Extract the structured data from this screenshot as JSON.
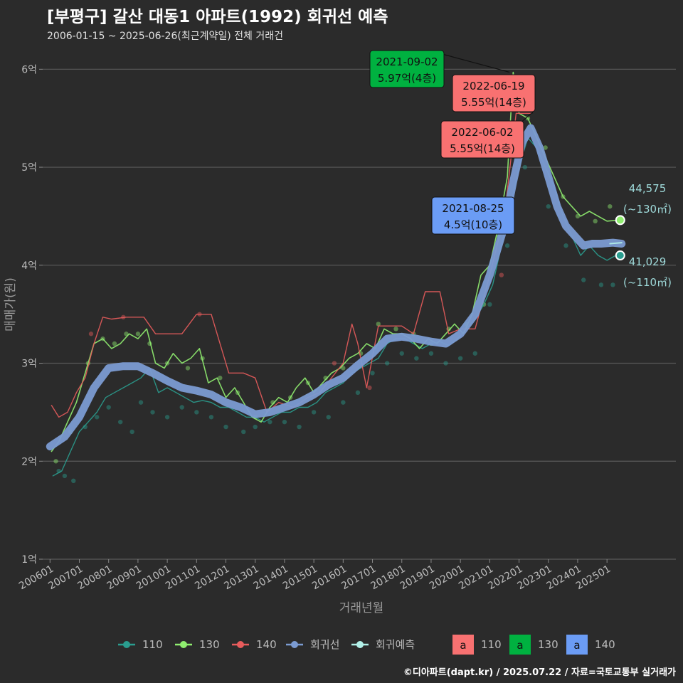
{
  "header": {
    "title": "[부평구] 갈산 대동1 아파트(1992) 회귀선 예측",
    "subtitle": "2006-01-15 ~ 2025-06-26(최근계약일) 전체 거래건"
  },
  "footer": "©디아파트(dapt.kr) / 2025.07.22 / 자료=국토교통부 실거래가",
  "colors": {
    "background": "#2b2b2b",
    "grid": "#5a5a5a",
    "s110": "#2a9d8f",
    "s130": "#90ee70",
    "s140": "#e85c5c",
    "regression": "#7b9bd2",
    "forecast": "#b2f0e8",
    "box110": "#f87171",
    "box130": "#00b140",
    "box140": "#6b9cf5"
  },
  "chart_data": {
    "type": "line",
    "title": "[부평구] 갈산 대동1 아파트(1992) 회귀선 예측",
    "xlabel": "거래년월",
    "ylabel": "매매가(원)",
    "xlim": [
      2005.75,
      2027.35
    ],
    "ylim": [
      1,
      6.3
    ],
    "x_ticks": [
      {
        "x": 2006,
        "label": "200601"
      },
      {
        "x": 2007,
        "label": "200701"
      },
      {
        "x": 2008,
        "label": "200801"
      },
      {
        "x": 2009,
        "label": "200901"
      },
      {
        "x": 2010,
        "label": "201001"
      },
      {
        "x": 2011,
        "label": "201101"
      },
      {
        "x": 2012,
        "label": "201201"
      },
      {
        "x": 2013,
        "label": "201301"
      },
      {
        "x": 2014,
        "label": "201401"
      },
      {
        "x": 2015,
        "label": "201501"
      },
      {
        "x": 2016,
        "label": "201601"
      },
      {
        "x": 2017,
        "label": "201701"
      },
      {
        "x": 2018,
        "label": "201801"
      },
      {
        "x": 2019,
        "label": "201901"
      },
      {
        "x": 2020,
        "label": "202001"
      },
      {
        "x": 2021,
        "label": "202101"
      },
      {
        "x": 2022,
        "label": "202201"
      },
      {
        "x": 2023,
        "label": "202301"
      },
      {
        "x": 2024,
        "label": "202401"
      },
      {
        "x": 2025,
        "label": "202501"
      }
    ],
    "y_ticks": [
      {
        "y": 1,
        "label": "1억"
      },
      {
        "y": 2,
        "label": "2억"
      },
      {
        "y": 3,
        "label": "3억"
      },
      {
        "y": 4,
        "label": "4억"
      },
      {
        "y": 5,
        "label": "5억"
      },
      {
        "y": 6,
        "label": "6억"
      }
    ],
    "series": [
      {
        "name": "110",
        "key": "s110",
        "width": 1.4,
        "x": [
          2006.1,
          2006.4,
          2006.7,
          2007.0,
          2007.3,
          2007.6,
          2007.9,
          2008.2,
          2008.5,
          2008.8,
          2009.1,
          2009.4,
          2009.7,
          2010.0,
          2010.3,
          2010.6,
          2010.9,
          2011.2,
          2011.5,
          2011.8,
          2012.1,
          2012.4,
          2012.7,
          2013.0,
          2013.3,
          2013.6,
          2013.9,
          2014.2,
          2014.5,
          2014.8,
          2015.1,
          2015.4,
          2015.7,
          2016.0,
          2016.3,
          2016.6,
          2016.9,
          2017.2,
          2017.5,
          2017.8,
          2018.1,
          2018.4,
          2018.7,
          2019.0,
          2019.3,
          2019.6,
          2019.9,
          2020.2,
          2020.5,
          2020.8,
          2021.1,
          2021.4,
          2021.7,
          2022.0,
          2022.3,
          2022.6,
          2022.9,
          2023.2,
          2023.5,
          2023.8,
          2024.1,
          2024.4,
          2024.7,
          2025.0,
          2025.3
        ],
        "y": [
          1.85,
          1.9,
          2.1,
          2.3,
          2.4,
          2.5,
          2.65,
          2.7,
          2.75,
          2.8,
          2.85,
          2.95,
          2.7,
          2.75,
          2.7,
          2.65,
          2.6,
          2.62,
          2.6,
          2.55,
          2.55,
          2.5,
          2.45,
          2.45,
          2.4,
          2.45,
          2.5,
          2.5,
          2.55,
          2.55,
          2.6,
          2.7,
          2.75,
          2.8,
          2.9,
          2.95,
          3.0,
          3.05,
          3.2,
          3.25,
          3.25,
          3.2,
          3.15,
          3.2,
          3.22,
          3.18,
          3.25,
          3.35,
          3.45,
          3.6,
          3.8,
          4.2,
          4.6,
          5.0,
          5.3,
          5.2,
          5.0,
          4.8,
          4.5,
          4.3,
          4.1,
          4.2,
          4.1,
          4.05,
          4.1
        ]
      },
      {
        "name": "130",
        "key": "s130",
        "width": 1.6,
        "x": [
          2006.05,
          2006.3,
          2006.6,
          2006.9,
          2007.2,
          2007.5,
          2007.8,
          2008.1,
          2008.4,
          2008.7,
          2009.0,
          2009.3,
          2009.6,
          2009.9,
          2010.2,
          2010.5,
          2010.8,
          2011.1,
          2011.4,
          2011.7,
          2012.0,
          2012.3,
          2012.6,
          2012.9,
          2013.2,
          2013.5,
          2013.8,
          2014.1,
          2014.4,
          2014.7,
          2015.0,
          2015.3,
          2015.6,
          2015.9,
          2016.2,
          2016.5,
          2016.8,
          2017.1,
          2017.4,
          2017.7,
          2018.0,
          2018.3,
          2018.6,
          2018.9,
          2019.2,
          2019.5,
          2019.8,
          2020.1,
          2020.4,
          2020.7,
          2021.0,
          2021.3,
          2021.6,
          2021.8,
          2022.0,
          2022.3,
          2022.6,
          2022.9,
          2023.2,
          2023.5,
          2023.8,
          2024.1,
          2024.4,
          2024.7,
          2025.0,
          2025.4
        ],
        "y": [
          2.1,
          2.2,
          2.4,
          2.6,
          2.9,
          3.2,
          3.25,
          3.15,
          3.2,
          3.3,
          3.25,
          3.35,
          3.0,
          2.95,
          3.1,
          3.0,
          3.05,
          3.15,
          2.8,
          2.85,
          2.65,
          2.75,
          2.6,
          2.45,
          2.4,
          2.55,
          2.65,
          2.6,
          2.75,
          2.85,
          2.7,
          2.8,
          2.9,
          2.95,
          3.05,
          3.1,
          3.2,
          3.15,
          3.35,
          3.3,
          3.3,
          3.25,
          3.15,
          3.25,
          3.2,
          3.3,
          3.4,
          3.3,
          3.5,
          3.9,
          4.0,
          4.4,
          4.9,
          5.97,
          5.55,
          5.5,
          5.3,
          5.1,
          4.9,
          4.7,
          4.6,
          4.5,
          4.55,
          4.5,
          4.45,
          4.46
        ]
      },
      {
        "name": "140",
        "key": "s140",
        "width": 1.4,
        "x": [
          2006.05,
          2006.3,
          2006.6,
          2006.9,
          2007.2,
          2007.5,
          2007.8,
          2008.1,
          2008.6,
          2009.2,
          2009.6,
          2010.1,
          2010.5,
          2011.0,
          2011.5,
          2012.1,
          2012.6,
          2013.0,
          2013.4,
          2013.8,
          2014.3,
          2014.8,
          2015.2,
          2015.6,
          2016.0,
          2016.3,
          2016.5,
          2016.8,
          2017.2,
          2017.6,
          2018.0,
          2018.4,
          2018.8,
          2019.3,
          2019.6,
          2020.0,
          2020.5,
          2021.0,
          2021.5,
          2021.9,
          2022.4
        ],
        "y": [
          2.57,
          2.45,
          2.5,
          2.7,
          2.85,
          3.2,
          3.47,
          3.45,
          3.47,
          3.47,
          3.3,
          3.3,
          3.3,
          3.5,
          3.5,
          2.9,
          2.9,
          2.85,
          2.5,
          2.6,
          2.55,
          2.65,
          2.7,
          2.85,
          3.0,
          3.4,
          3.2,
          2.75,
          3.38,
          3.38,
          3.38,
          3.3,
          3.73,
          3.73,
          3.3,
          3.35,
          3.35,
          3.9,
          4.5,
          5.55,
          5.55
        ]
      },
      {
        "name": "회귀선",
        "key": "regression",
        "width": 11,
        "x": [
          2006.0,
          2006.5,
          2007.0,
          2007.5,
          2008.0,
          2008.5,
          2009.0,
          2009.5,
          2010.0,
          2010.5,
          2011.0,
          2011.5,
          2012.0,
          2012.5,
          2013.0,
          2013.5,
          2014.0,
          2014.5,
          2015.0,
          2015.5,
          2016.0,
          2016.5,
          2017.0,
          2017.5,
          2018.0,
          2018.5,
          2019.0,
          2019.5,
          2020.0,
          2020.5,
          2021.0,
          2021.5,
          2021.8,
          2022.1,
          2022.4,
          2022.7,
          2023.0,
          2023.3,
          2023.6,
          2023.9,
          2024.2,
          2024.5,
          2024.8,
          2025.2,
          2025.5
        ],
        "y": [
          2.15,
          2.25,
          2.45,
          2.75,
          2.95,
          2.97,
          2.97,
          2.9,
          2.82,
          2.75,
          2.72,
          2.68,
          2.6,
          2.55,
          2.48,
          2.5,
          2.55,
          2.6,
          2.68,
          2.78,
          2.85,
          2.98,
          3.1,
          3.25,
          3.27,
          3.25,
          3.22,
          3.2,
          3.3,
          3.5,
          3.9,
          4.4,
          4.85,
          5.25,
          5.4,
          5.2,
          4.9,
          4.6,
          4.4,
          4.3,
          4.2,
          4.22,
          4.22,
          4.23,
          4.22
        ]
      },
      {
        "name": "회귀예측",
        "key": "forecast",
        "width": 2,
        "x": [
          2025.1,
          2025.5
        ],
        "y": [
          4.22,
          4.23
        ]
      }
    ],
    "scatter_points": {
      "s110": [
        [
          2006.3,
          1.9
        ],
        [
          2006.5,
          1.85
        ],
        [
          2006.8,
          1.8
        ],
        [
          2007.2,
          2.35
        ],
        [
          2007.6,
          2.45
        ],
        [
          2008.0,
          2.55
        ],
        [
          2008.4,
          2.4
        ],
        [
          2008.8,
          2.3
        ],
        [
          2009.1,
          2.6
        ],
        [
          2009.5,
          2.5
        ],
        [
          2010.0,
          2.45
        ],
        [
          2010.5,
          2.55
        ],
        [
          2011.0,
          2.5
        ],
        [
          2011.5,
          2.45
        ],
        [
          2012.0,
          2.35
        ],
        [
          2012.6,
          2.3
        ],
        [
          2013.0,
          2.35
        ],
        [
          2013.5,
          2.4
        ],
        [
          2014.0,
          2.4
        ],
        [
          2014.5,
          2.35
        ],
        [
          2015.0,
          2.5
        ],
        [
          2015.5,
          2.45
        ],
        [
          2016.0,
          2.6
        ],
        [
          2016.5,
          2.7
        ],
        [
          2017.0,
          2.9
        ],
        [
          2017.5,
          3.0
        ],
        [
          2018.0,
          3.1
        ],
        [
          2018.5,
          3.05
        ],
        [
          2019.0,
          3.1
        ],
        [
          2019.5,
          3.0
        ],
        [
          2020.0,
          3.05
        ],
        [
          2020.5,
          3.1
        ],
        [
          2021.0,
          3.6
        ],
        [
          2021.6,
          4.2
        ],
        [
          2022.2,
          5.0
        ],
        [
          2023.0,
          4.6
        ],
        [
          2023.6,
          4.2
        ],
        [
          2024.2,
          3.85
        ],
        [
          2024.8,
          3.8
        ],
        [
          2025.2,
          3.8
        ]
      ],
      "s130": [
        [
          2006.2,
          2.0
        ],
        [
          2006.7,
          2.3
        ],
        [
          2007.3,
          3.0
        ],
        [
          2007.8,
          3.25
        ],
        [
          2008.2,
          3.2
        ],
        [
          2008.6,
          3.3
        ],
        [
          2009.0,
          3.3
        ],
        [
          2009.4,
          3.2
        ],
        [
          2010.0,
          3.0
        ],
        [
          2010.7,
          2.95
        ],
        [
          2011.2,
          3.05
        ],
        [
          2011.8,
          2.85
        ],
        [
          2012.4,
          2.7
        ],
        [
          2013.0,
          2.45
        ],
        [
          2013.6,
          2.6
        ],
        [
          2014.2,
          2.65
        ],
        [
          2014.8,
          2.8
        ],
        [
          2015.4,
          2.85
        ],
        [
          2016.0,
          2.95
        ],
        [
          2016.6,
          3.1
        ],
        [
          2017.2,
          3.4
        ],
        [
          2017.8,
          3.35
        ],
        [
          2018.4,
          3.3
        ],
        [
          2019.0,
          3.2
        ],
        [
          2019.6,
          3.35
        ],
        [
          2020.2,
          3.4
        ],
        [
          2020.8,
          3.6
        ],
        [
          2021.3,
          4.3
        ],
        [
          2021.8,
          5.6
        ],
        [
          2022.3,
          5.5
        ],
        [
          2022.9,
          5.2
        ],
        [
          2023.5,
          4.7
        ],
        [
          2024.0,
          4.5
        ],
        [
          2024.6,
          4.45
        ],
        [
          2025.1,
          4.6
        ]
      ],
      "s140": [
        [
          2007.4,
          3.3
        ],
        [
          2008.5,
          3.47
        ],
        [
          2011.1,
          3.5
        ],
        [
          2015.7,
          3.0
        ],
        [
          2016.9,
          2.75
        ],
        [
          2021.4,
          3.9
        ]
      ]
    },
    "annotations": [
      {
        "date": "2021-09-02",
        "value": "5.97억(4층)",
        "color_key": "box130",
        "x": 2021.67,
        "y": 5.97
      },
      {
        "date": "2022-06-19",
        "value": "5.55억(14층)",
        "color_key": "box110",
        "x": 2022.46,
        "y": 5.55
      },
      {
        "date": "2022-06-02",
        "value": "5.55억(14층)",
        "color_key": "box110",
        "x": 2022.42,
        "y": 5.55
      },
      {
        "date": "2021-08-25",
        "value": "4.5억(10층)",
        "color_key": "box140",
        "x": 2021.65,
        "y": 4.5
      }
    ],
    "end_labels": [
      {
        "price": "44,575",
        "area": "(~130㎡)",
        "color_key": "s130",
        "x": 2025.5,
        "y": 4.46
      },
      {
        "price": "41,029",
        "area": "(~110㎡)",
        "color_key": "s110",
        "x": 2025.5,
        "y": 4.1
      }
    ]
  },
  "legend": {
    "lines": [
      {
        "label": "110",
        "color_key": "s110"
      },
      {
        "label": "130",
        "color_key": "s130"
      },
      {
        "label": "140",
        "color_key": "s140"
      },
      {
        "label": "회귀선",
        "color_key": "regression"
      },
      {
        "label": "회귀예측",
        "color_key": "forecast"
      }
    ],
    "boxes": [
      {
        "glyph": "a",
        "label": "110",
        "color_key": "box110"
      },
      {
        "glyph": "a",
        "label": "130",
        "color_key": "box130"
      },
      {
        "glyph": "a",
        "label": "140",
        "color_key": "box140"
      }
    ]
  }
}
